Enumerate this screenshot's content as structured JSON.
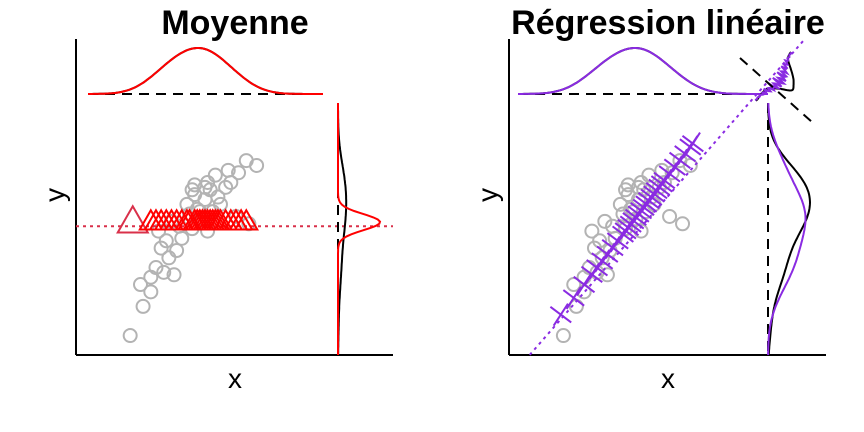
{
  "chart_data": [
    {
      "type": "scatter",
      "title": "Moyenne",
      "xlabel": "x",
      "ylabel": "y",
      "xlim": [
        0,
        10
      ],
      "ylim": [
        0,
        10
      ],
      "grid": false,
      "colors": {
        "points": "#b3b3b3",
        "fit": "#ff0000",
        "fit_dark": "#d9304a",
        "density": "#000000"
      },
      "points": [
        [
          2.1,
          0.8
        ],
        [
          2.6,
          2.0
        ],
        [
          2.5,
          2.9
        ],
        [
          2.9,
          2.6
        ],
        [
          2.9,
          3.2
        ],
        [
          3.1,
          3.6
        ],
        [
          3.3,
          4.4
        ],
        [
          3.2,
          5.1
        ],
        [
          3.6,
          4.0
        ],
        [
          3.8,
          3.3
        ],
        [
          3.4,
          3.4
        ],
        [
          4.0,
          5.3
        ],
        [
          3.7,
          5.5
        ],
        [
          4.1,
          4.8
        ],
        [
          3.9,
          4.3
        ],
        [
          4.4,
          5.8
        ],
        [
          4.6,
          6.6
        ],
        [
          4.3,
          6.2
        ],
        [
          4.8,
          5.9
        ],
        [
          5.0,
          6.4
        ],
        [
          4.5,
          5.2
        ],
        [
          4.9,
          5.6
        ],
        [
          5.1,
          7.1
        ],
        [
          5.2,
          6.8
        ],
        [
          5.5,
          6.5
        ],
        [
          5.4,
          7.4
        ],
        [
          5.8,
          6.9
        ],
        [
          4.7,
          6.0
        ],
        [
          5.3,
          5.9
        ],
        [
          6.0,
          7.1
        ],
        [
          6.3,
          7.5
        ],
        [
          5.6,
          6.2
        ],
        [
          4.5,
          6.8
        ],
        [
          3.5,
          4.7
        ],
        [
          4.6,
          7.0
        ],
        [
          5.0,
          6.9
        ],
        [
          6.6,
          8.0
        ],
        [
          5.9,
          7.6
        ],
        [
          7.0,
          7.8
        ],
        [
          6.2,
          5.7
        ],
        [
          6.7,
          5.4
        ],
        [
          5.1,
          5.1
        ]
      ],
      "fit_markers": {
        "shape": "triangle",
        "x": [
          2.2,
          2.9,
          3.1,
          3.3,
          3.5,
          3.7,
          3.9,
          4.1,
          4.3,
          4.4,
          4.6,
          4.7,
          4.8,
          4.9,
          5.0,
          5.1,
          5.2,
          5.3,
          5.4,
          5.5,
          5.6,
          5.8,
          6.0,
          6.2,
          6.4,
          6.6
        ],
        "y": 5.3
      },
      "fit_line": {
        "type": "horizontal",
        "y": 5.3
      },
      "density_x": {
        "observed": "black",
        "fitted": "red"
      },
      "density_y": {
        "observed": "black",
        "fitted": "red"
      }
    },
    {
      "type": "scatter",
      "title": "Régression linéaire",
      "xlabel": "x",
      "ylabel": "y",
      "xlim": [
        0,
        10
      ],
      "ylim": [
        0,
        10
      ],
      "grid": false,
      "colors": {
        "points": "#b3b3b3",
        "fit": "#8a2be2",
        "density": "#000000"
      },
      "points": [
        [
          2.1,
          0.8
        ],
        [
          2.6,
          2.0
        ],
        [
          2.5,
          2.9
        ],
        [
          2.9,
          2.6
        ],
        [
          2.9,
          3.2
        ],
        [
          3.1,
          3.6
        ],
        [
          3.3,
          4.4
        ],
        [
          3.2,
          5.1
        ],
        [
          3.6,
          4.0
        ],
        [
          3.8,
          3.3
        ],
        [
          3.4,
          3.4
        ],
        [
          4.0,
          5.3
        ],
        [
          3.7,
          5.5
        ],
        [
          4.1,
          4.8
        ],
        [
          3.9,
          4.3
        ],
        [
          4.4,
          5.8
        ],
        [
          4.6,
          6.6
        ],
        [
          4.3,
          6.2
        ],
        [
          4.8,
          5.9
        ],
        [
          5.0,
          6.4
        ],
        [
          4.5,
          5.2
        ],
        [
          4.9,
          5.6
        ],
        [
          5.1,
          7.1
        ],
        [
          5.2,
          6.8
        ],
        [
          5.5,
          6.5
        ],
        [
          5.4,
          7.4
        ],
        [
          5.8,
          6.9
        ],
        [
          4.7,
          6.0
        ],
        [
          5.3,
          5.9
        ],
        [
          6.0,
          7.1
        ],
        [
          6.3,
          7.5
        ],
        [
          5.6,
          6.2
        ],
        [
          4.5,
          6.8
        ],
        [
          3.5,
          4.7
        ],
        [
          4.6,
          7.0
        ],
        [
          5.0,
          6.9
        ],
        [
          6.6,
          8.0
        ],
        [
          5.9,
          7.6
        ],
        [
          7.0,
          7.8
        ],
        [
          6.2,
          5.7
        ],
        [
          6.7,
          5.4
        ],
        [
          5.1,
          5.1
        ]
      ],
      "fit_markers": {
        "shape": "cross",
        "x": [
          2.0,
          2.5,
          2.9,
          3.2,
          3.4,
          3.6,
          3.8,
          4.0,
          4.2,
          4.4,
          4.5,
          4.6,
          4.7,
          4.8,
          4.9,
          5.0,
          5.1,
          5.2,
          5.3,
          5.4,
          5.5,
          5.6,
          5.7,
          5.8,
          5.9,
          6.0,
          6.2,
          6.4,
          6.6,
          6.8,
          7.0,
          7.1
        ]
      },
      "fit_line": {
        "type": "linear",
        "intercept": -1.1,
        "slope": 1.38
      },
      "density_x": {
        "observed": "black",
        "fitted": "purple"
      },
      "density_y": {
        "observed": "black",
        "fitted": "purple"
      }
    }
  ]
}
